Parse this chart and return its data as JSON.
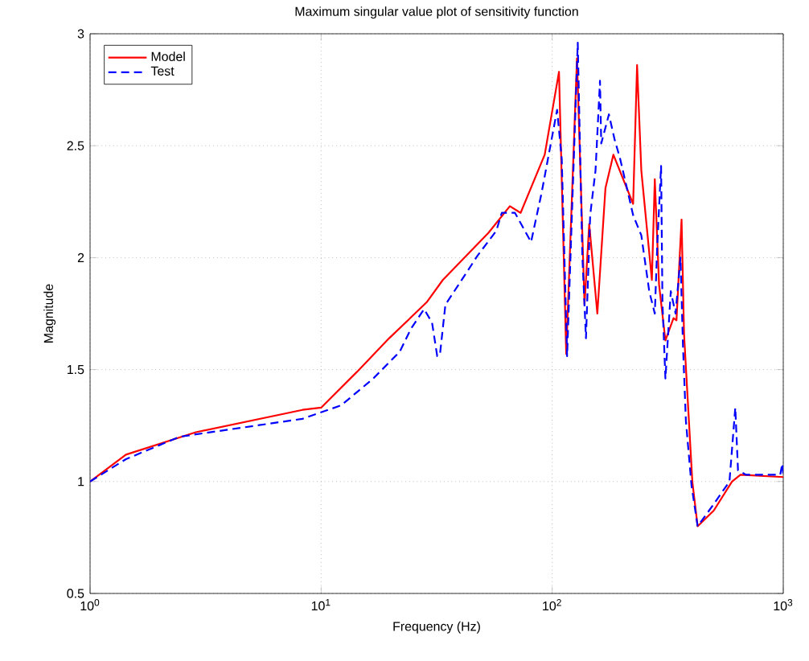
{
  "chart_data": {
    "type": "line",
    "title": "Maximum singular value plot of sensitivity function",
    "xlabel": "Frequency (Hz)",
    "ylabel": "Magnitude",
    "log": "x",
    "grid": true,
    "legend": "top left",
    "xlim": [
      1,
      1000
    ],
    "xticks": [
      {
        "value": 1,
        "label": "10$^{0}$"
      },
      {
        "value": 10,
        "label": "10$^{1}$"
      },
      {
        "value": 100,
        "label": "10$^{2}$"
      },
      {
        "value": 1000,
        "label": "10$^{3}$"
      }
    ],
    "ylim": [
      0.5,
      3
    ],
    "yticks": [
      0.5,
      1,
      1.5,
      2,
      2.5,
      3
    ],
    "series": [
      {
        "name": "Model",
        "color": "#ff0000",
        "line_style": "solid",
        "x": [
          1,
          1.43,
          2.87,
          8.3,
          10,
          14.3,
          19.7,
          28.6,
          33.6,
          52.9,
          65.6,
          73,
          92.8,
          107,
          115,
          128,
          138,
          144.6,
          156.8,
          170,
          184,
          224,
          233,
          243,
          270,
          278,
          290,
          309,
          335,
          345,
          363,
          372,
          404,
          426,
          500,
          600,
          653,
          1000
        ],
        "values": [
          1.0,
          1.12,
          1.22,
          1.32,
          1.33,
          1.49,
          1.64,
          1.8,
          1.9,
          2.11,
          2.23,
          2.2,
          2.46,
          2.83,
          1.57,
          2.89,
          1.79,
          2.15,
          1.75,
          2.31,
          2.46,
          2.24,
          2.86,
          2.39,
          1.9,
          2.35,
          1.88,
          1.63,
          1.73,
          1.72,
          2.17,
          1.66,
          1.0,
          0.8,
          0.87,
          1.0,
          1.03,
          1.02
        ]
      },
      {
        "name": "Test",
        "color": "#0000ff",
        "line_style": "dashed",
        "x": [
          1,
          1.43,
          2.44,
          8.3,
          12.2,
          16.8,
          21.9,
          24.4,
          27.9,
          30.2,
          31.8,
          32.7,
          34.5,
          39.4,
          47.6,
          57.3,
          60.5,
          69,
          81,
          90,
          105,
          110,
          116,
          129,
          135,
          140,
          146,
          154,
          161,
          163,
          176,
          186,
          197,
          224,
          243,
          263,
          278,
          285,
          296,
          300,
          309,
          326,
          342,
          359,
          368,
          379,
          401,
          426,
          493,
          585,
          620,
          637,
          690,
          970,
          990,
          1000
        ],
        "values": [
          1.0,
          1.1,
          1.2,
          1.28,
          1.34,
          1.46,
          1.58,
          1.68,
          1.77,
          1.71,
          1.56,
          1.57,
          1.79,
          1.88,
          2.01,
          2.12,
          2.2,
          2.2,
          2.07,
          2.29,
          2.66,
          2.44,
          1.56,
          2.96,
          2.01,
          1.64,
          2.19,
          2.39,
          2.79,
          2.51,
          2.64,
          2.53,
          2.44,
          2.19,
          2.1,
          1.85,
          1.75,
          2.06,
          2.41,
          1.8,
          1.46,
          1.85,
          1.75,
          2.0,
          1.61,
          1.27,
          0.98,
          0.8,
          0.89,
          1.0,
          1.33,
          1.05,
          1.03,
          1.03,
          1.08,
          1.03
        ]
      }
    ]
  }
}
